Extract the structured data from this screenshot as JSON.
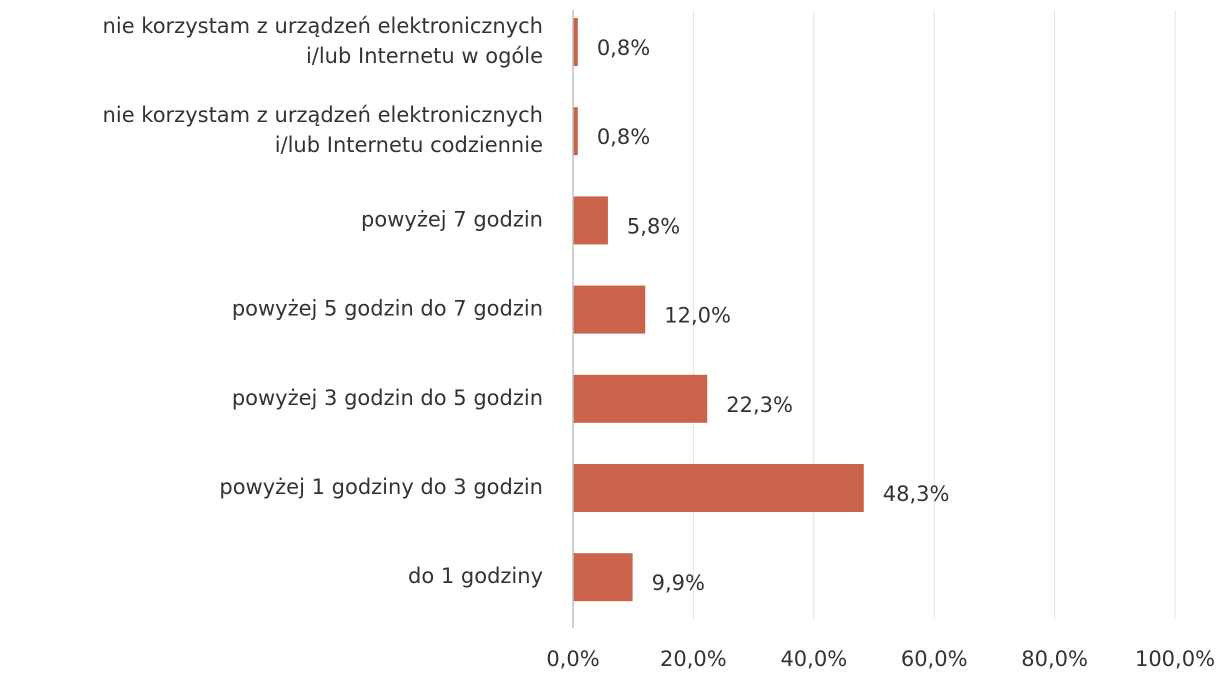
{
  "chart_data": {
    "type": "bar",
    "orientation": "horizontal",
    "categories": [
      "nie korzystam  z urządzeń elektronicznych\ni/lub Internetu  w ogóle",
      "nie korzystam  z urządzeń elektronicznych\ni/lub Internetu  codziennie",
      "powyżej 7 godzin",
      "powyżej 5 godzin do 7 godzin",
      "powyżej 3 godzin do 5 godzin",
      "powyżej 1 godziny do 3 godzin",
      "do 1 godziny"
    ],
    "values": [
      0.8,
      0.8,
      5.8,
      12.0,
      22.3,
      48.3,
      9.9
    ],
    "value_labels": [
      "0,8%",
      "0,8%",
      "5,8%",
      "12,0%",
      "22,3%",
      "48,3%",
      "9,9%"
    ],
    "color": "#c9644a",
    "xlim": [
      0,
      100
    ],
    "xticks": [
      {
        "value": 0,
        "label": "0,0%"
      },
      {
        "value": 20,
        "label": "20,0%"
      },
      {
        "value": 40,
        "label": "40,0%"
      },
      {
        "value": 60,
        "label": "60,0%"
      },
      {
        "value": 80,
        "label": "80,0%"
      },
      {
        "value": 100,
        "label": "100,0%"
      }
    ],
    "grid": true
  }
}
